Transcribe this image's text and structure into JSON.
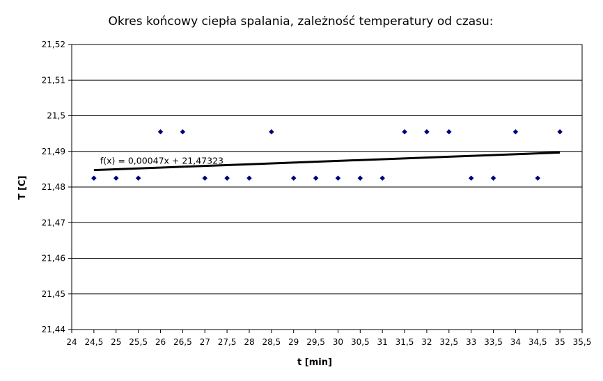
{
  "chart_data": {
    "type": "scatter",
    "title": "Okres końcowy ciepła spalania, zależność temperatury od czasu:",
    "xlabel": "t [min]",
    "ylabel": "T [C]",
    "xlim": [
      24,
      35.5
    ],
    "ylim": [
      21.44,
      21.52
    ],
    "x_ticks": [
      24,
      24.5,
      25,
      25.5,
      26,
      26.5,
      27,
      27.5,
      28,
      28.5,
      29,
      29.5,
      30,
      30.5,
      31,
      31.5,
      32,
      32.5,
      33,
      33.5,
      34,
      34.5,
      35,
      35.5
    ],
    "x_tick_labels": [
      "24",
      "24,5",
      "25",
      "25,5",
      "26",
      "26,5",
      "27",
      "27,5",
      "28",
      "28,5",
      "29",
      "29,5",
      "30",
      "30,5",
      "31",
      "31,5",
      "32",
      "32,5",
      "33",
      "33,5",
      "34",
      "34,5",
      "35",
      "35,5"
    ],
    "y_ticks": [
      21.44,
      21.45,
      21.46,
      21.47,
      21.48,
      21.49,
      21.5,
      21.51,
      21.52
    ],
    "y_tick_labels": [
      "21,44",
      "21,45",
      "21,46",
      "21,47",
      "21,48",
      "21,49",
      "21,5",
      "21,51",
      "21,52"
    ],
    "grid": "horizontal",
    "series": [
      {
        "x": [
          24.5,
          25,
          25.5,
          26,
          26.5,
          27,
          27.5,
          28,
          28.5,
          29,
          29.5,
          30,
          30.5,
          31,
          31.5,
          32,
          32.5,
          33,
          33.5,
          34,
          34.5,
          35
        ],
        "y": [
          21.4825,
          21.4825,
          21.4825,
          21.4955,
          21.4955,
          21.4825,
          21.4825,
          21.4825,
          21.4955,
          21.4825,
          21.4825,
          21.4825,
          21.4825,
          21.4825,
          21.4955,
          21.4955,
          21.4955,
          21.4825,
          21.4825,
          21.4955,
          21.4825,
          21.4955
        ],
        "marker_color": "#00007f"
      }
    ],
    "trendline": {
      "label": "f(x) = 0,00047x + 21,47323",
      "slope": 0.00047,
      "intercept": 21.47323,
      "x_range": [
        24.5,
        35
      ],
      "color": "#000000"
    }
  }
}
